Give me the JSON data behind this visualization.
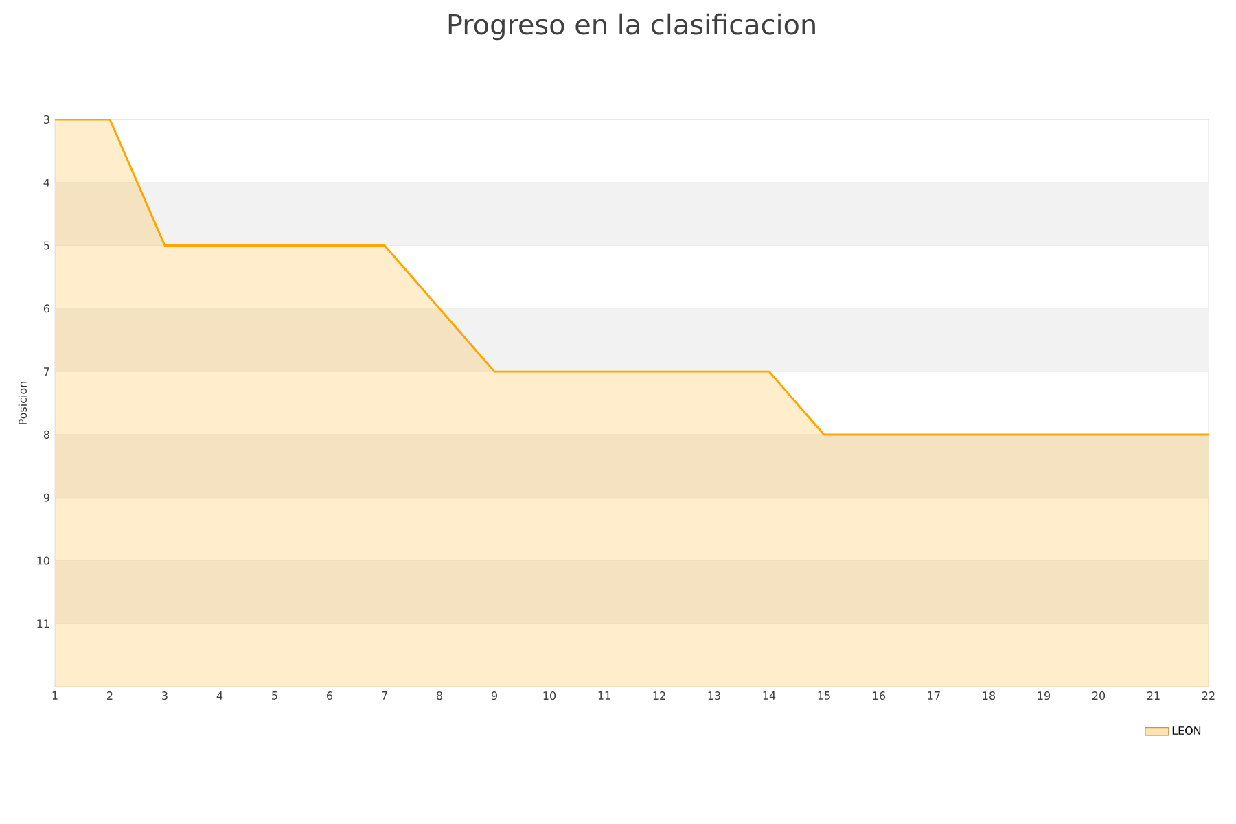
{
  "chart_data": {
    "type": "area",
    "title": "Progreso en la clasificacion",
    "ylabel": "Posicion",
    "x": [
      1,
      2,
      3,
      4,
      5,
      6,
      7,
      8,
      9,
      10,
      11,
      12,
      13,
      14,
      15,
      16,
      17,
      18,
      19,
      20,
      21,
      22
    ],
    "series": [
      {
        "name": "LEON",
        "color": "#ffa500",
        "values": [
          3,
          3,
          5,
          5,
          5,
          5,
          5,
          6,
          7,
          7,
          7,
          7,
          7,
          7,
          8,
          8,
          8,
          8,
          8,
          8,
          8,
          8
        ]
      }
    ],
    "xlim": [
      1,
      22
    ],
    "xticks": [
      1,
      2,
      3,
      4,
      5,
      6,
      7,
      8,
      9,
      10,
      11,
      12,
      13,
      14,
      15,
      16,
      17,
      18,
      19,
      20,
      21,
      22
    ],
    "ylim": [
      12,
      3
    ],
    "yticks": [
      3,
      4,
      5,
      6,
      7,
      8,
      9,
      10,
      11
    ],
    "bands": [
      {
        "axis": "y",
        "from": 4,
        "to": 5,
        "color": "#f2f2f2"
      },
      {
        "axis": "y",
        "from": 6,
        "to": 7,
        "color": "#f2f2f2"
      },
      {
        "axis": "y",
        "from": 8,
        "to": 9,
        "color": "#f2f2f2"
      },
      {
        "axis": "y",
        "from": 10,
        "to": 11,
        "color": "#f2f2f2"
      }
    ],
    "grid": "y",
    "legend": "bottom right",
    "marker": "none",
    "line_style": "solid"
  }
}
